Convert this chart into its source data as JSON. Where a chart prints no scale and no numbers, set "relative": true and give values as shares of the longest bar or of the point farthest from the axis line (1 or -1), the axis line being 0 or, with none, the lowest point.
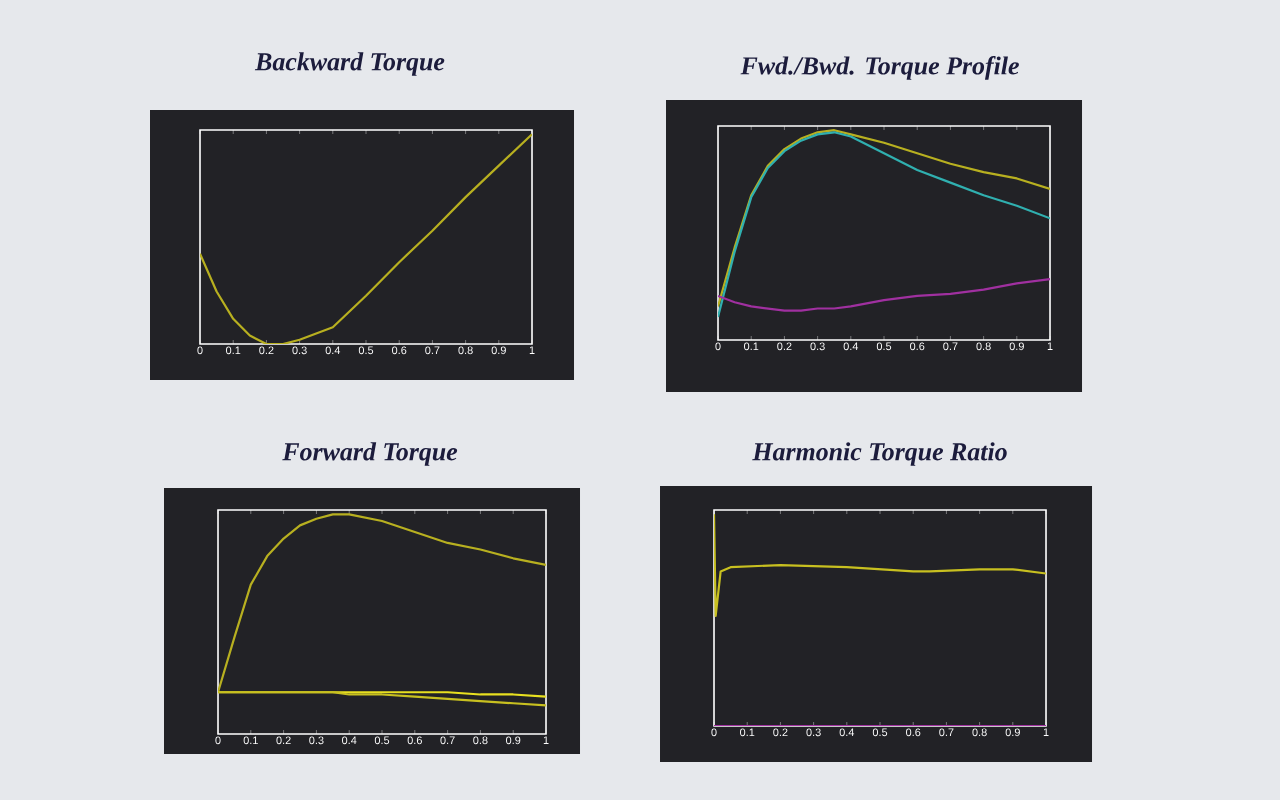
{
  "chart_data": [
    {
      "type": "line",
      "title": "Backward Torque",
      "relative": true,
      "tick_labels": "x",
      "xlim": [
        0,
        1
      ],
      "xticks": [
        0,
        0.1,
        0.2,
        0.3,
        0.4,
        0.5,
        0.6,
        0.7,
        0.8,
        0.9,
        1
      ],
      "x": [
        0,
        0.05,
        0.1,
        0.15,
        0.2,
        0.25,
        0.3,
        0.4,
        0.5,
        0.6,
        0.7,
        0.8,
        0.9,
        1
      ],
      "series": [
        {
          "color": "#b8b020",
          "values": [
            0.43,
            0.25,
            0.12,
            0.04,
            0.0,
            0.0,
            0.02,
            0.08,
            0.23,
            0.39,
            0.54,
            0.7,
            0.85,
            1
          ]
        }
      ]
    },
    {
      "type": "line",
      "title": "Fwd./Bwd. Torque Profile",
      "relative": true,
      "tick_labels": "x",
      "xlim": [
        0,
        1
      ],
      "xticks": [
        0,
        0.1,
        0.2,
        0.3,
        0.4,
        0.5,
        0.6,
        0.7,
        0.8,
        0.9,
        1
      ],
      "x": [
        0,
        0.05,
        0.1,
        0.15,
        0.2,
        0.25,
        0.3,
        0.35,
        0.4,
        0.5,
        0.6,
        0.7,
        0.8,
        0.9,
        1
      ],
      "series": [
        {
          "color": "#b8b020",
          "values": [
            0.16,
            0.44,
            0.69,
            0.83,
            0.91,
            0.96,
            0.99,
            1,
            0.98,
            0.94,
            0.89,
            0.84,
            0.8,
            0.77,
            0.72
          ]
        },
        {
          "color": "#30b0b0",
          "values": [
            0.11,
            0.42,
            0.68,
            0.82,
            0.9,
            0.95,
            0.98,
            0.99,
            0.97,
            0.89,
            0.81,
            0.75,
            0.69,
            0.64,
            0.58
          ]
        },
        {
          "color": "#a030a0",
          "values": [
            0.21,
            0.18,
            0.16,
            0.15,
            0.14,
            0.14,
            0.15,
            0.15,
            0.16,
            0.19,
            0.21,
            0.22,
            0.24,
            0.27,
            0.29
          ]
        }
      ]
    },
    {
      "type": "line",
      "title": "Forward  Torque",
      "relative": true,
      "tick_labels": "x",
      "xlim": [
        0,
        1
      ],
      "xticks": [
        0,
        0.1,
        0.2,
        0.3,
        0.4,
        0.5,
        0.6,
        0.7,
        0.8,
        0.9,
        1
      ],
      "x": [
        0,
        0.05,
        0.1,
        0.15,
        0.2,
        0.25,
        0.3,
        0.35,
        0.4,
        0.5,
        0.6,
        0.7,
        0.8,
        0.9,
        1
      ],
      "series": [
        {
          "color": "#b8b020",
          "values": [
            0.19,
            0.44,
            0.68,
            0.81,
            0.89,
            0.95,
            0.98,
            1,
            1,
            0.97,
            0.92,
            0.87,
            0.84,
            0.8,
            0.77
          ]
        },
        {
          "color": "#e8e020",
          "values": [
            0.19,
            0.19,
            0.19,
            0.19,
            0.19,
            0.19,
            0.19,
            0.19,
            0.19,
            0.19,
            0.19,
            0.19,
            0.18,
            0.18,
            0.17
          ]
        },
        {
          "color": "#c8c020",
          "values": [
            0.19,
            0.19,
            0.19,
            0.19,
            0.19,
            0.19,
            0.19,
            0.19,
            0.18,
            0.18,
            0.17,
            0.16,
            0.15,
            0.14,
            0.13
          ]
        }
      ]
    },
    {
      "type": "line",
      "title": "Harmonic Torque Ratio",
      "relative": true,
      "tick_labels": "x",
      "xlim": [
        0,
        1
      ],
      "xticks": [
        0,
        0.1,
        0.2,
        0.3,
        0.4,
        0.5,
        0.6,
        0.7,
        0.8,
        0.9,
        1
      ],
      "x": [
        0,
        0.005,
        0.02,
        0.05,
        0.2,
        0.4,
        0.6,
        0.65,
        0.8,
        0.9,
        1
      ],
      "series": [
        {
          "color": "#c8c020",
          "values": [
            1,
            0.52,
            0.73,
            0.75,
            0.76,
            0.75,
            0.73,
            0.73,
            0.74,
            0.74,
            0.72
          ]
        },
        {
          "color": "#a030a0",
          "values": [
            0,
            0,
            0,
            0,
            0,
            0,
            0,
            0,
            0,
            0,
            0
          ]
        }
      ]
    }
  ]
}
